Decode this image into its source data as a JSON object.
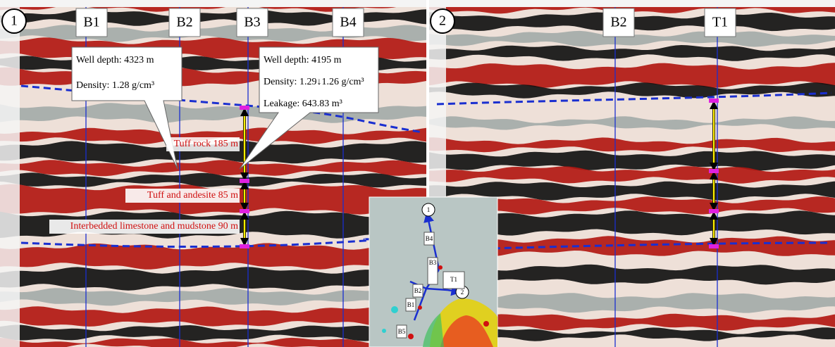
{
  "panels": [
    {
      "number": "1",
      "wells": [
        "B1",
        "B2",
        "B3",
        "B4"
      ]
    },
    {
      "number": "2",
      "wells": [
        "B2",
        "T1"
      ]
    }
  ],
  "callouts": [
    {
      "lines": [
        "Well depth: 4323 m",
        "Density: 1.28 g/cm³"
      ]
    },
    {
      "lines": [
        "Well depth: 4195 m",
        "Density: 1.29↓1.26 g/cm³",
        "Leakage: 643.83 m³"
      ]
    }
  ],
  "annotations": [
    "Tuff rock 185 m",
    "Tuff and andesite 85 m",
    "Interbedded limestone and mudstone 90 m"
  ],
  "map": {
    "points": [
      "1",
      "2"
    ],
    "wells": [
      "B4",
      "B3",
      "T1",
      "B2",
      "B1",
      "B5"
    ]
  }
}
